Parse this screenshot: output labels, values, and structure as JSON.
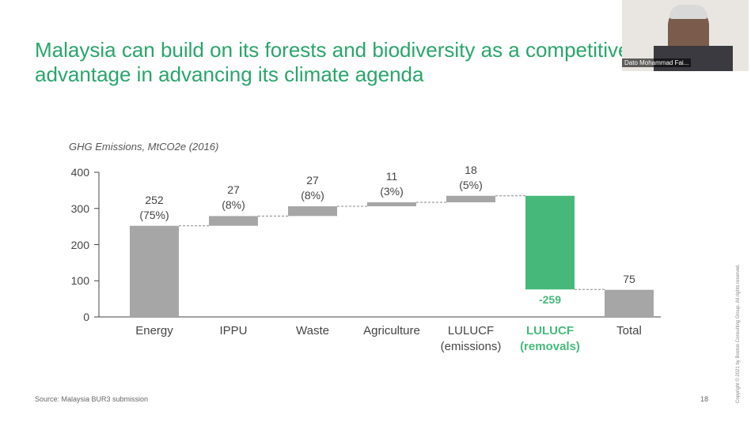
{
  "slide": {
    "title": "Malaysia can build on its forests and biodiversity as a competitive\nadvantage in advancing its climate agenda",
    "source": "Source: Malaysia BUR3 submission",
    "page_number": "18",
    "copyright": "Copyright © 2021 by Boston Consulting Group. All rights reserved.",
    "participant": "Dato Mohammad Fai..."
  },
  "chart_data": {
    "type": "waterfall",
    "y_label": "GHG Emissions, MtCO2e (2016)",
    "categories": [
      "Energy",
      "IPPU",
      "Waste",
      "Agriculture",
      "LULUCF\n(emissions)",
      "LULUCF\n(removals)",
      "Total"
    ],
    "values": [
      252,
      27,
      27,
      11,
      18,
      -259,
      75
    ],
    "value_labels": [
      "252\n(75%)",
      "27\n(8%)",
      "27\n(8%)",
      "11\n(3%)",
      "18\n(5%)",
      "-259",
      "75"
    ],
    "measure": [
      "relative",
      "relative",
      "relative",
      "relative",
      "relative",
      "relative",
      "total"
    ],
    "color": "#a6a6a6",
    "colors": [
      "#a6a6a6",
      "#a6a6a6",
      "#a6a6a6",
      "#a6a6a6",
      "#a6a6a6",
      "#46b97a",
      "#a6a6a6"
    ],
    "ylim": [
      0,
      400
    ],
    "yticks": [
      0,
      100,
      200,
      300,
      400
    ]
  }
}
